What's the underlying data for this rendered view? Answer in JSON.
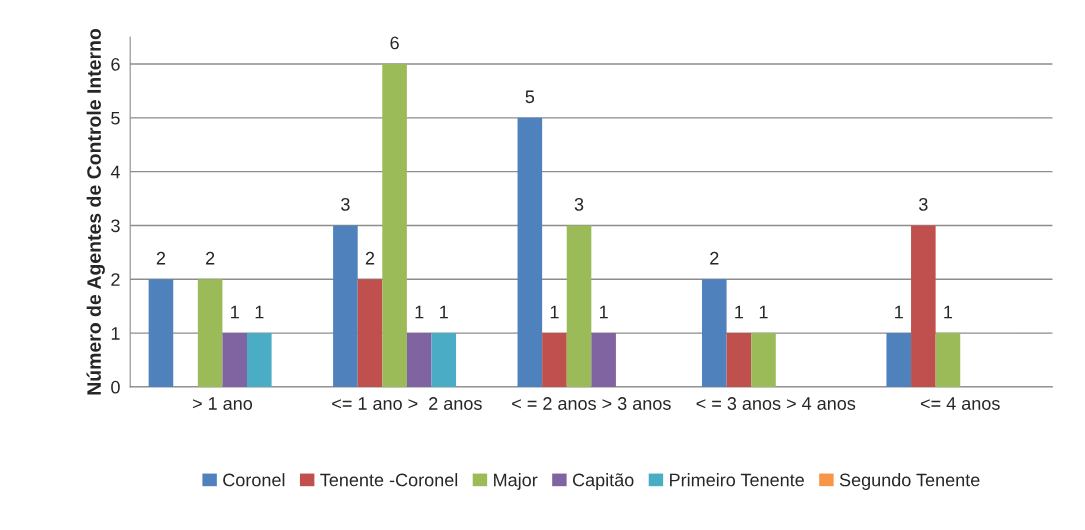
{
  "chart_data": {
    "type": "bar",
    "ylabel": "Número de Agentes de Controle Interno",
    "categories": [
      "> 1 ano",
      "<= 1 ano >  2 anos",
      "< = 2 anos > 3 anos",
      "< = 3 anos > 4 anos",
      "<= 4 anos"
    ],
    "series": [
      {
        "name": "Coronel",
        "color": "#4f81bd",
        "values": [
          2,
          3,
          5,
          2,
          1
        ],
        "value_labels": [
          "2",
          "3",
          "5",
          "2",
          "1"
        ]
      },
      {
        "name": "Tenente -Coronel",
        "color": "#c0504d",
        "values": [
          0,
          2,
          1,
          1,
          3
        ],
        "value_labels": [
          null,
          "2",
          "1",
          "1",
          "3"
        ]
      },
      {
        "name": "Major",
        "color": "#9bbb59",
        "values": [
          2,
          6,
          3,
          1,
          1
        ],
        "value_labels": [
          "2",
          "6",
          "3",
          "1",
          "1"
        ]
      },
      {
        "name": "Capitão",
        "color": "#8064a2",
        "values": [
          1,
          1,
          1,
          0,
          0
        ],
        "value_labels": [
          "1",
          "1",
          "1",
          null,
          null
        ]
      },
      {
        "name": "Primeiro Tenente",
        "color": "#4bacc6",
        "values": [
          1,
          1,
          0,
          0,
          0
        ],
        "value_labels": [
          "1",
          "1",
          null,
          null,
          null
        ]
      },
      {
        "name": "Segundo Tenente",
        "color": "#f79646",
        "values": [
          0,
          0,
          0,
          0,
          0
        ],
        "value_labels": [
          null,
          null,
          null,
          null,
          null
        ]
      }
    ],
    "ylim": [
      0,
      6.5
    ],
    "yticks": [
      0,
      1,
      2,
      3,
      4,
      5,
      6
    ],
    "grid": "y",
    "legend": "bottom"
  }
}
